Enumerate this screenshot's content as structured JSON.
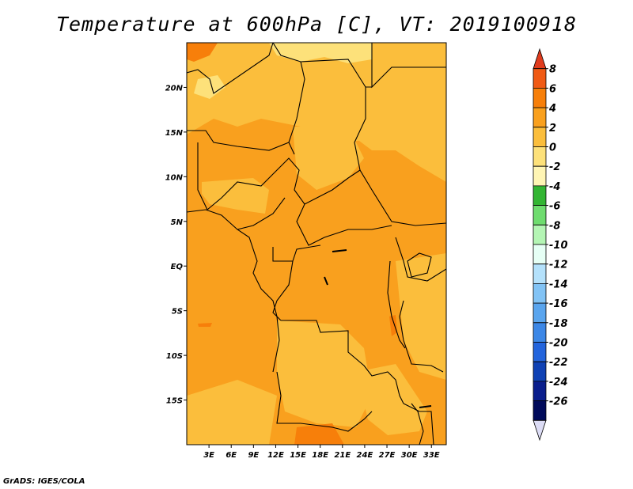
{
  "title": "Temperature at 600hPa [C], VT: 2019100918",
  "credit": "GrADS: IGES/COLA",
  "map": {
    "variable": "Temperature",
    "level": "600hPa",
    "units": "C",
    "valid_time": "2019100918",
    "lat_labels": [
      "20N",
      "15N",
      "10N",
      "5N",
      "EQ",
      "5S",
      "10S",
      "15S"
    ],
    "lat_values": [
      20,
      15,
      10,
      5,
      0,
      -5,
      -10,
      -15
    ],
    "lon_labels": [
      "3E",
      "6E",
      "9E",
      "12E",
      "15E",
      "18E",
      "21E",
      "24E",
      "27E",
      "30E",
      "33E"
    ],
    "lon_values": [
      3,
      6,
      9,
      12,
      15,
      18,
      21,
      24,
      27,
      30,
      33
    ],
    "extent": {
      "lon_min": 0,
      "lon_max": 35,
      "lat_min": -20,
      "lat_max": 25
    }
  },
  "colorbar": {
    "labels": [
      "8",
      "6",
      "4",
      "2",
      "0",
      "-2",
      "-4",
      "-6",
      "-8",
      "-10",
      "-12",
      "-14",
      "-16",
      "-18",
      "-20",
      "-22",
      "-24",
      "-26"
    ],
    "colors": [
      "#e03c1e",
      "#f05a14",
      "#f77f0a",
      "#f9a01e",
      "#fbbe3c",
      "#fde17a",
      "#fff5b4",
      "#33b533",
      "#6fdc6f",
      "#b4f5b4",
      "#e6fff5",
      "#b4e1fb",
      "#82c3f5",
      "#5aa5ee",
      "#3c87e6",
      "#2364dc",
      "#0f41b4",
      "#0a1e8c",
      "#000a5a",
      "#dcdcf5"
    ]
  }
}
